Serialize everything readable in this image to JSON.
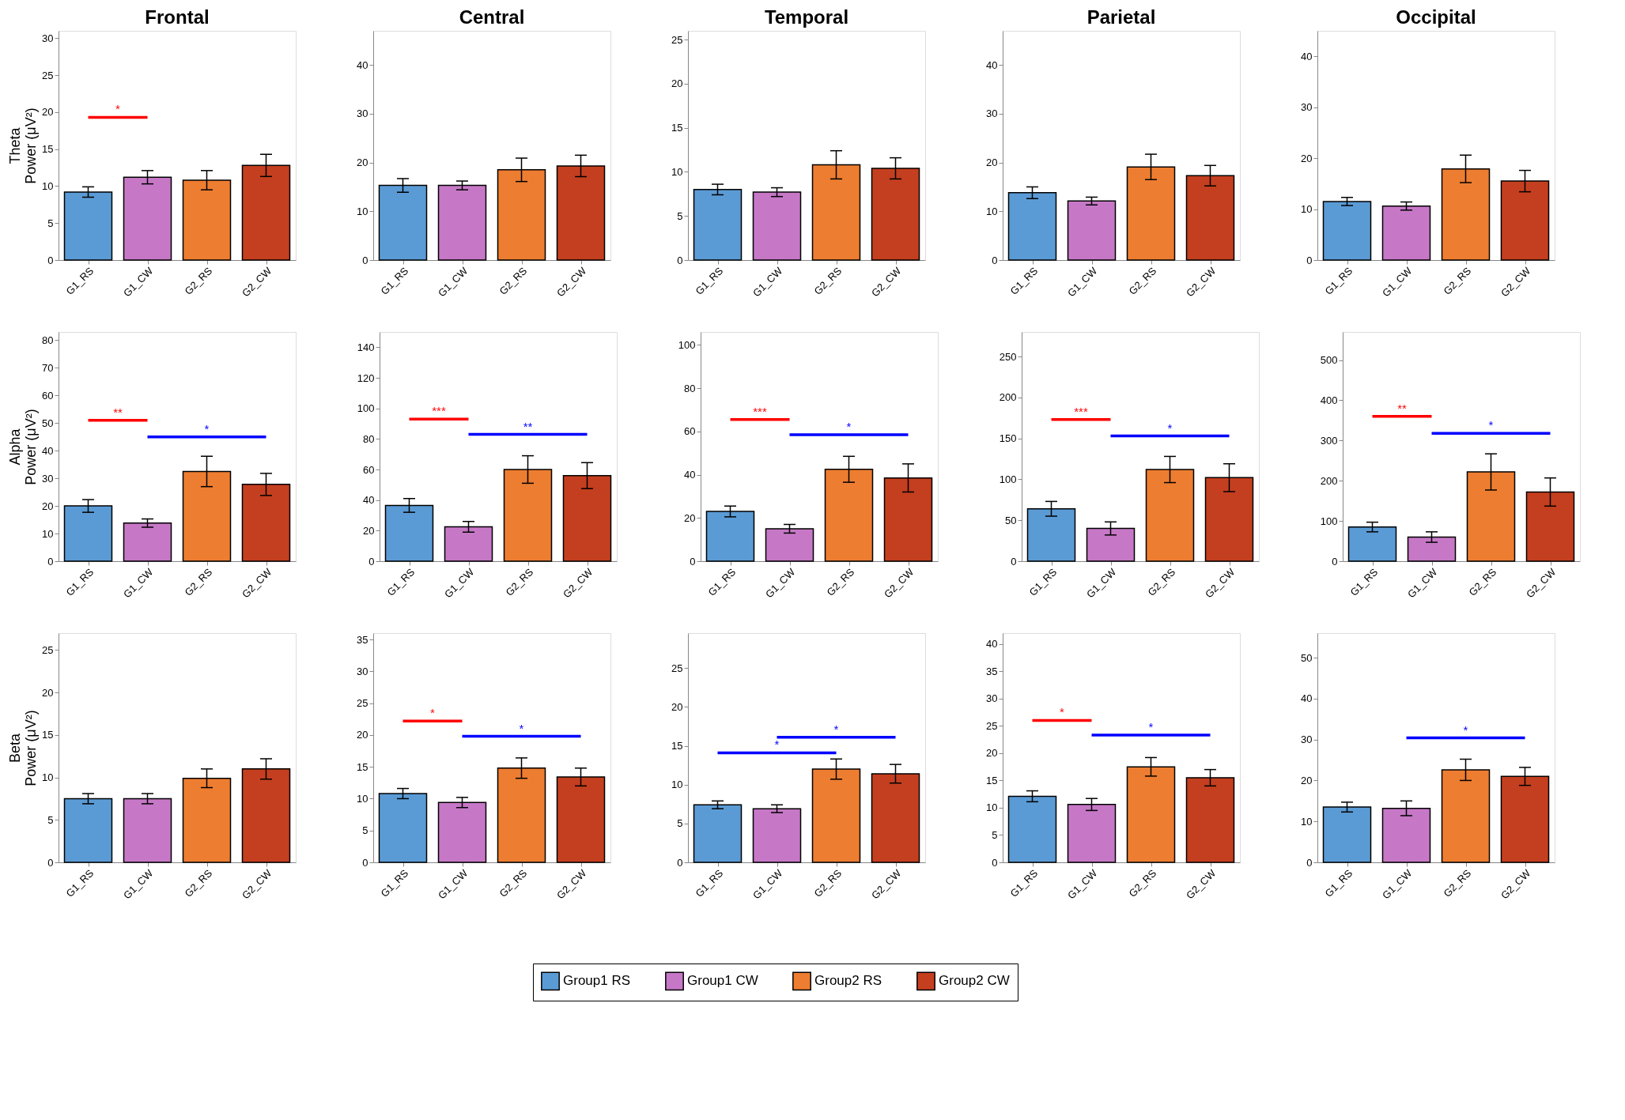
{
  "chart_data": [
    {
      "type": "bar",
      "title": "Frontal",
      "ylabel": "Theta\nPower (μV²)",
      "categories": [
        "G1_RS",
        "G1_CW",
        "G2_RS",
        "G2_CW"
      ],
      "ylim": [
        0,
        31
      ],
      "yticks": [
        0,
        5,
        10,
        15,
        20,
        25,
        30
      ],
      "grid": false,
      "legend": "bottom",
      "series": [
        {
          "name": "Group1 RS",
          "color": "#5b9bd5",
          "values": [
            9.2,
            null,
            null,
            null
          ],
          "errors": [
            0.7,
            null,
            null,
            null
          ]
        },
        {
          "name": "Group1 CW",
          "color": "#c678c6",
          "values": [
            null,
            11.2,
            null,
            null
          ],
          "errors": [
            null,
            0.9,
            null,
            null
          ]
        },
        {
          "name": "Group2 RS",
          "color": "#ed7d31",
          "values": [
            null,
            null,
            10.8,
            null
          ],
          "errors": [
            null,
            null,
            1.3,
            null
          ]
        },
        {
          "name": "Group2 CW",
          "color": "#c43f1f",
          "values": [
            null,
            null,
            null,
            12.8
          ],
          "errors": [
            null,
            null,
            null,
            1.5
          ]
        },
        {
          "type": "line",
          "color": "#ff0000",
          "values": [
            19.3,
            19.3,
            null,
            null
          ]
        }
      ],
      "annotations": [
        "*"
      ]
    },
    {
      "type": "bar",
      "title": "Central",
      "categories": [
        "G1_RS",
        "G1_CW",
        "G2_RS",
        "G2_CW"
      ],
      "ylim": [
        0,
        47
      ],
      "yticks": [
        0,
        10,
        20,
        30,
        40
      ],
      "grid": false,
      "legend": "bottom",
      "series": [
        {
          "name": "Group1 RS",
          "color": "#5b9bd5",
          "values": [
            15.3,
            null,
            null,
            null
          ],
          "errors": [
            1.4,
            null,
            null,
            null
          ]
        },
        {
          "name": "Group1 CW",
          "color": "#c678c6",
          "values": [
            null,
            15.3,
            null,
            null
          ],
          "errors": [
            null,
            0.9,
            null,
            null
          ]
        },
        {
          "name": "Group2 RS",
          "color": "#ed7d31",
          "values": [
            null,
            null,
            18.5,
            null
          ],
          "errors": [
            null,
            null,
            2.4,
            null
          ]
        },
        {
          "name": "Group2 CW",
          "color": "#c43f1f",
          "values": [
            null,
            null,
            null,
            19.3
          ],
          "errors": [
            null,
            null,
            null,
            2.2
          ]
        }
      ]
    },
    {
      "type": "bar",
      "title": "Temporal",
      "categories": [
        "G1_RS",
        "G1_CW",
        "G2_RS",
        "G2_CW"
      ],
      "ylim": [
        0,
        26
      ],
      "yticks": [
        0,
        5,
        10,
        15,
        20,
        25
      ],
      "grid": false,
      "legend": "bottom",
      "series": [
        {
          "name": "Group1 RS",
          "color": "#5b9bd5",
          "values": [
            8.0,
            null,
            null,
            null
          ],
          "errors": [
            0.6,
            null,
            null,
            null
          ]
        },
        {
          "name": "Group1 CW",
          "color": "#c678c6",
          "values": [
            null,
            7.7,
            null,
            null
          ],
          "errors": [
            null,
            0.5,
            null,
            null
          ]
        },
        {
          "name": "Group2 RS",
          "color": "#ed7d31",
          "values": [
            null,
            null,
            10.8,
            null
          ],
          "errors": [
            null,
            null,
            1.6,
            null
          ]
        },
        {
          "name": "Group2 CW",
          "color": "#c43f1f",
          "values": [
            null,
            null,
            null,
            10.4
          ],
          "errors": [
            null,
            null,
            null,
            1.2
          ]
        }
      ]
    },
    {
      "type": "bar",
      "title": "Parietal",
      "categories": [
        "G1_RS",
        "G1_CW",
        "G2_RS",
        "G2_CW"
      ],
      "ylim": [
        0,
        47
      ],
      "yticks": [
        0,
        10,
        20,
        30,
        40
      ],
      "grid": false,
      "legend": "bottom",
      "series": [
        {
          "name": "Group1 RS",
          "color": "#5b9bd5",
          "values": [
            13.8,
            null,
            null,
            null
          ],
          "errors": [
            1.2,
            null,
            null,
            null
          ]
        },
        {
          "name": "Group1 CW",
          "color": "#c678c6",
          "values": [
            null,
            12.1,
            null,
            null
          ],
          "errors": [
            null,
            0.8,
            null,
            null
          ]
        },
        {
          "name": "Group2 RS",
          "color": "#ed7d31",
          "values": [
            null,
            null,
            19.1,
            null
          ],
          "errors": [
            null,
            null,
            2.6,
            null
          ]
        },
        {
          "name": "Group2 CW",
          "color": "#c43f1f",
          "values": [
            null,
            null,
            null,
            17.3
          ],
          "errors": [
            null,
            null,
            null,
            2.1
          ]
        }
      ]
    },
    {
      "type": "bar",
      "title": "Occipital",
      "categories": [
        "G1_RS",
        "G1_CW",
        "G2_RS",
        "G2_CW"
      ],
      "ylim": [
        0,
        45
      ],
      "yticks": [
        0,
        10,
        20,
        30,
        40
      ],
      "grid": false,
      "legend": "bottom",
      "series": [
        {
          "name": "Group1 RS",
          "color": "#5b9bd5",
          "values": [
            11.5,
            null,
            null,
            null
          ],
          "errors": [
            0.8,
            null,
            null,
            null
          ]
        },
        {
          "name": "Group1 CW",
          "color": "#c678c6",
          "values": [
            null,
            10.6,
            null,
            null
          ],
          "errors": [
            null,
            0.8,
            null,
            null
          ]
        },
        {
          "name": "Group2 RS",
          "color": "#ed7d31",
          "values": [
            null,
            null,
            17.9,
            null
          ],
          "errors": [
            null,
            null,
            2.7,
            null
          ]
        },
        {
          "name": "Group2 CW",
          "color": "#c43f1f",
          "values": [
            null,
            null,
            null,
            15.5
          ],
          "errors": [
            null,
            null,
            null,
            2.1
          ]
        }
      ]
    },
    {
      "type": "bar",
      "ylabel": "Alpha\nPower (μV²)",
      "categories": [
        "G1_RS",
        "G1_CW",
        "G2_RS",
        "G2_CW"
      ],
      "ylim": [
        0,
        83
      ],
      "yticks": [
        0,
        10,
        20,
        30,
        40,
        50,
        60,
        70,
        80
      ],
      "grid": false,
      "legend": "bottom",
      "series": [
        {
          "name": "Group1 RS",
          "color": "#5b9bd5",
          "values": [
            20,
            null,
            null,
            null
          ],
          "errors": [
            2.3,
            null,
            null,
            null
          ]
        },
        {
          "name": "Group1 CW",
          "color": "#c678c6",
          "values": [
            null,
            13.8,
            null,
            null
          ],
          "errors": [
            null,
            1.5,
            null,
            null
          ]
        },
        {
          "name": "Group2 RS",
          "color": "#ed7d31",
          "values": [
            null,
            null,
            32.5,
            null
          ],
          "errors": [
            null,
            null,
            5.5,
            null
          ]
        },
        {
          "name": "Group2 CW",
          "color": "#c43f1f",
          "values": [
            null,
            null,
            null,
            27.8
          ],
          "errors": [
            null,
            null,
            null,
            4.0
          ]
        },
        {
          "type": "line",
          "color": "#ff0000",
          "values": [
            51,
            51,
            null,
            null
          ]
        },
        {
          "type": "line",
          "color": "#0000ff",
          "values": [
            null,
            45,
            45,
            45
          ]
        }
      ],
      "annotations": [
        "**",
        "*"
      ]
    },
    {
      "type": "bar",
      "categories": [
        "G1_RS",
        "G1_CW",
        "G2_RS",
        "G2_CW"
      ],
      "ylim": [
        0,
        150
      ],
      "yticks": [
        0,
        20,
        40,
        60,
        80,
        100,
        120,
        140
      ],
      "grid": false,
      "legend": "bottom",
      "series": [
        {
          "name": "Group1 RS",
          "color": "#5b9bd5",
          "values": [
            36.5,
            null,
            null,
            null
          ],
          "errors": [
            4.5,
            null,
            null,
            null
          ]
        },
        {
          "name": "Group1 CW",
          "color": "#c678c6",
          "values": [
            null,
            22.5,
            null,
            null
          ],
          "errors": [
            null,
            3.5,
            null,
            null
          ]
        },
        {
          "name": "Group2 RS",
          "color": "#ed7d31",
          "values": [
            null,
            null,
            60,
            null
          ],
          "errors": [
            null,
            null,
            9,
            null
          ]
        },
        {
          "name": "Group2 CW",
          "color": "#c43f1f",
          "values": [
            null,
            null,
            null,
            56
          ],
          "errors": [
            null,
            null,
            null,
            8.5
          ]
        },
        {
          "type": "line",
          "color": "#ff0000",
          "values": [
            93,
            93,
            null,
            null
          ]
        },
        {
          "type": "line",
          "color": "#0000ff",
          "values": [
            null,
            83,
            83,
            83
          ]
        }
      ],
      "annotations": [
        "***",
        "**"
      ]
    },
    {
      "type": "bar",
      "categories": [
        "G1_RS",
        "G1_CW",
        "G2_RS",
        "G2_CW"
      ],
      "ylim": [
        0,
        106
      ],
      "yticks": [
        0,
        20,
        40,
        60,
        80,
        100
      ],
      "grid": false,
      "legend": "bottom",
      "series": [
        {
          "name": "Group1 RS",
          "color": "#5b9bd5",
          "values": [
            23,
            null,
            null,
            null
          ],
          "errors": [
            2.5,
            null,
            null,
            null
          ]
        },
        {
          "name": "Group1 CW",
          "color": "#c678c6",
          "values": [
            null,
            15,
            null,
            null
          ],
          "errors": [
            null,
            2,
            null,
            null
          ]
        },
        {
          "name": "Group2 RS",
          "color": "#ed7d31",
          "values": [
            null,
            null,
            42.5,
            null
          ],
          "errors": [
            null,
            null,
            6,
            null
          ]
        },
        {
          "name": "Group2 CW",
          "color": "#c43f1f",
          "values": [
            null,
            null,
            null,
            38.5
          ],
          "errors": [
            null,
            null,
            null,
            6.5
          ]
        },
        {
          "type": "line",
          "color": "#ff0000",
          "values": [
            65.5,
            65.5,
            null,
            null
          ]
        },
        {
          "type": "line",
          "color": "#0000ff",
          "values": [
            null,
            58.5,
            58.5,
            58.5
          ]
        }
      ],
      "annotations": [
        "***",
        "*"
      ]
    },
    {
      "type": "bar",
      "categories": [
        "G1_RS",
        "G1_CW",
        "G2_RS",
        "G2_CW"
      ],
      "ylim": [
        0,
        280
      ],
      "yticks": [
        0,
        50,
        100,
        150,
        200,
        250
      ],
      "grid": false,
      "legend": "bottom",
      "series": [
        {
          "name": "Group1 RS",
          "color": "#5b9bd5",
          "values": [
            64,
            null,
            null,
            null
          ],
          "errors": [
            9,
            null,
            null,
            null
          ]
        },
        {
          "name": "Group1 CW",
          "color": "#c678c6",
          "values": [
            null,
            40,
            null,
            null
          ],
          "errors": [
            null,
            8,
            null,
            null
          ]
        },
        {
          "name": "Group2 RS",
          "color": "#ed7d31",
          "values": [
            null,
            null,
            112,
            null
          ],
          "errors": [
            null,
            null,
            16,
            null
          ]
        },
        {
          "name": "Group2 CW",
          "color": "#c43f1f",
          "values": [
            null,
            null,
            null,
            102
          ],
          "errors": [
            null,
            null,
            null,
            17
          ]
        },
        {
          "type": "line",
          "color": "#ff0000",
          "values": [
            173,
            173,
            null,
            null
          ]
        },
        {
          "type": "line",
          "color": "#0000ff",
          "values": [
            null,
            153,
            153,
            153
          ]
        }
      ],
      "annotations": [
        "***",
        "*"
      ]
    },
    {
      "type": "bar",
      "categories": [
        "G1_RS",
        "G1_CW",
        "G2_RS",
        "G2_CW"
      ],
      "ylim": [
        0,
        570
      ],
      "yticks": [
        0,
        100,
        200,
        300,
        400,
        500
      ],
      "grid": false,
      "legend": "bottom",
      "series": [
        {
          "name": "Group1 RS",
          "color": "#5b9bd5",
          "values": [
            85,
            null,
            null,
            null
          ],
          "errors": [
            12,
            null,
            null,
            null
          ]
        },
        {
          "name": "Group1 CW",
          "color": "#c678c6",
          "values": [
            null,
            60,
            null,
            null
          ],
          "errors": [
            null,
            13,
            null,
            null
          ]
        },
        {
          "name": "Group2 RS",
          "color": "#ed7d31",
          "values": [
            null,
            null,
            222,
            null
          ],
          "errors": [
            null,
            null,
            45,
            null
          ]
        },
        {
          "name": "Group2 CW",
          "color": "#c43f1f",
          "values": [
            null,
            null,
            null,
            172
          ],
          "errors": [
            null,
            null,
            null,
            35
          ]
        },
        {
          "type": "line",
          "color": "#ff0000",
          "values": [
            360,
            360,
            null,
            null
          ]
        },
        {
          "type": "line",
          "color": "#0000ff",
          "values": [
            null,
            318,
            318,
            318
          ]
        }
      ],
      "annotations": [
        "**",
        "*"
      ]
    },
    {
      "type": "bar",
      "ylabel": "Beta\nPower (μV²)",
      "categories": [
        "G1_RS",
        "G1_CW",
        "G2_RS",
        "G2_CW"
      ],
      "ylim": [
        0,
        27
      ],
      "yticks": [
        0,
        5,
        10,
        15,
        20,
        25
      ],
      "grid": false,
      "legend": "bottom",
      "series": [
        {
          "name": "Group1 RS",
          "color": "#5b9bd5",
          "values": [
            7.5,
            null,
            null,
            null
          ],
          "errors": [
            0.6,
            null,
            null,
            null
          ]
        },
        {
          "name": "Group1 CW",
          "color": "#c678c6",
          "values": [
            null,
            7.5,
            null,
            null
          ],
          "errors": [
            null,
            0.6,
            null,
            null
          ]
        },
        {
          "name": "Group2 RS",
          "color": "#ed7d31",
          "values": [
            null,
            null,
            9.9,
            null
          ],
          "errors": [
            null,
            null,
            1.1,
            null
          ]
        },
        {
          "name": "Group2 CW",
          "color": "#c43f1f",
          "values": [
            null,
            null,
            null,
            11.0
          ],
          "errors": [
            null,
            null,
            null,
            1.2
          ]
        }
      ]
    },
    {
      "type": "bar",
      "categories": [
        "G1_RS",
        "G1_CW",
        "G2_RS",
        "G2_CW"
      ],
      "ylim": [
        0,
        36
      ],
      "yticks": [
        0,
        5,
        10,
        15,
        20,
        25,
        30,
        35
      ],
      "grid": false,
      "legend": "bottom",
      "series": [
        {
          "name": "Group1 RS",
          "color": "#5b9bd5",
          "values": [
            10.8,
            null,
            null,
            null
          ],
          "errors": [
            0.8,
            null,
            null,
            null
          ]
        },
        {
          "name": "Group1 CW",
          "color": "#c678c6",
          "values": [
            null,
            9.4,
            null,
            null
          ],
          "errors": [
            null,
            0.8,
            null,
            null
          ]
        },
        {
          "name": "Group2 RS",
          "color": "#ed7d31",
          "values": [
            null,
            null,
            14.8,
            null
          ],
          "errors": [
            null,
            null,
            1.6,
            null
          ]
        },
        {
          "name": "Group2 CW",
          "color": "#c43f1f",
          "values": [
            null,
            null,
            null,
            13.4
          ],
          "errors": [
            null,
            null,
            null,
            1.4
          ]
        },
        {
          "type": "line",
          "color": "#ff0000",
          "values": [
            22.2,
            22.2,
            null,
            null
          ]
        },
        {
          "type": "line",
          "color": "#0000ff",
          "values": [
            null,
            19.8,
            19.8,
            19.8
          ]
        }
      ],
      "annotations": [
        "*",
        "*"
      ]
    },
    {
      "type": "bar",
      "categories": [
        "G1_RS",
        "G1_CW",
        "G2_RS",
        "G2_CW"
      ],
      "ylim": [
        0,
        29.5
      ],
      "yticks": [
        0,
        5,
        10,
        15,
        20,
        25
      ],
      "grid": false,
      "legend": "bottom",
      "series": [
        {
          "name": "Group1 RS",
          "color": "#5b9bd5",
          "values": [
            7.4,
            null,
            null,
            null
          ],
          "errors": [
            0.5,
            null,
            null,
            null
          ]
        },
        {
          "name": "Group1 CW",
          "color": "#c678c6",
          "values": [
            null,
            6.9,
            null,
            null
          ],
          "errors": [
            null,
            0.5,
            null,
            null
          ]
        },
        {
          "name": "Group2 RS",
          "color": "#ed7d31",
          "values": [
            null,
            null,
            12.0,
            null
          ],
          "errors": [
            null,
            null,
            1.3,
            null
          ]
        },
        {
          "name": "Group2 CW",
          "color": "#c43f1f",
          "values": [
            null,
            null,
            null,
            11.4
          ],
          "errors": [
            null,
            null,
            null,
            1.2
          ]
        },
        {
          "type": "line",
          "color": "#0000ff",
          "values": [
            null,
            16.1,
            16.1,
            16.1
          ]
        },
        {
          "type": "line",
          "color": "#0000ff",
          "values": [
            14.1,
            14.1,
            14.1,
            null
          ]
        }
      ],
      "annotations": [
        "*",
        "*"
      ]
    },
    {
      "type": "bar",
      "categories": [
        "G1_RS",
        "G1_CW",
        "G2_RS",
        "G2_CW"
      ],
      "ylim": [
        0,
        42
      ],
      "yticks": [
        0,
        5,
        10,
        15,
        20,
        25,
        30,
        35,
        40
      ],
      "grid": false,
      "legend": "bottom",
      "series": [
        {
          "name": "Group1 RS",
          "color": "#5b9bd5",
          "values": [
            12.1,
            null,
            null,
            null
          ],
          "errors": [
            1.0,
            null,
            null,
            null
          ]
        },
        {
          "name": "Group1 CW",
          "color": "#c678c6",
          "values": [
            null,
            10.6,
            null,
            null
          ],
          "errors": [
            null,
            1.1,
            null,
            null
          ]
        },
        {
          "name": "Group2 RS",
          "color": "#ed7d31",
          "values": [
            null,
            null,
            17.5,
            null
          ],
          "errors": [
            null,
            null,
            1.7,
            null
          ]
        },
        {
          "name": "Group2 CW",
          "color": "#c43f1f",
          "values": [
            null,
            null,
            null,
            15.5
          ],
          "errors": [
            null,
            null,
            null,
            1.5
          ]
        },
        {
          "type": "line",
          "color": "#ff0000",
          "values": [
            26,
            26,
            null,
            null
          ]
        },
        {
          "type": "line",
          "color": "#0000ff",
          "values": [
            null,
            23.3,
            23.3,
            23.3
          ]
        }
      ],
      "annotations": [
        "*",
        "*"
      ]
    },
    {
      "type": "bar",
      "categories": [
        "G1_RS",
        "G1_CW",
        "G2_RS",
        "G2_CW"
      ],
      "ylim": [
        0,
        56
      ],
      "yticks": [
        0,
        10,
        20,
        30,
        40,
        50
      ],
      "grid": false,
      "legend": "bottom",
      "series": [
        {
          "name": "Group1 RS",
          "color": "#5b9bd5",
          "values": [
            13.5,
            null,
            null,
            null
          ],
          "errors": [
            1.2,
            null,
            null,
            null
          ]
        },
        {
          "name": "Group1 CW",
          "color": "#c678c6",
          "values": [
            null,
            13.2,
            null,
            null
          ],
          "errors": [
            null,
            1.8,
            null,
            null
          ]
        },
        {
          "name": "Group2 RS",
          "color": "#ed7d31",
          "values": [
            null,
            null,
            22.6,
            null
          ],
          "errors": [
            null,
            null,
            2.6,
            null
          ]
        },
        {
          "name": "Group2 CW",
          "color": "#c43f1f",
          "values": [
            null,
            null,
            null,
            21
          ],
          "errors": [
            null,
            null,
            null,
            2.2
          ]
        },
        {
          "type": "line",
          "color": "#0000ff",
          "values": [
            null,
            30.4,
            30.4,
            30.4
          ]
        }
      ],
      "annotations": [
        "*"
      ]
    }
  ]
}
